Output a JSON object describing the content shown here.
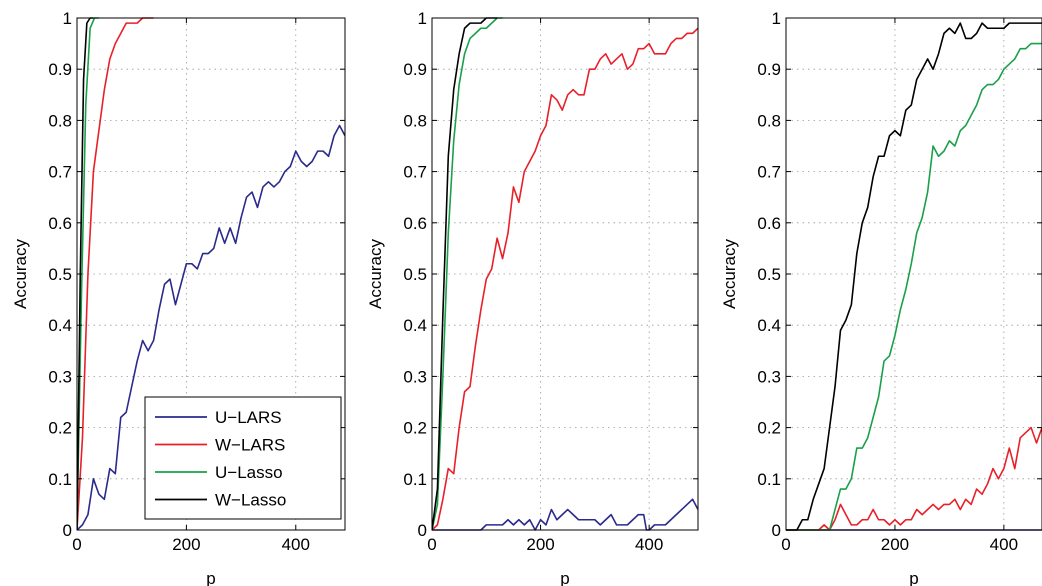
{
  "chart_data": [
    {
      "type": "line",
      "xlabel": "p",
      "ylabel": "Accuracy",
      "xlim": [
        0,
        490
      ],
      "ylim": [
        0,
        1
      ],
      "xticks": [
        0,
        200,
        400
      ],
      "yticks": [
        0,
        0.1,
        0.2,
        0.3,
        0.4,
        0.5,
        0.6,
        0.7,
        0.8,
        0.9,
        1
      ],
      "grid": true,
      "legend": "bottom-right",
      "series": [
        {
          "name": "U−LARS",
          "color": "#2a2a8c",
          "x": [
            0,
            10,
            20,
            30,
            40,
            50,
            60,
            70,
            80,
            90,
            100,
            110,
            120,
            130,
            140,
            150,
            160,
            170,
            180,
            190,
            200,
            210,
            220,
            230,
            240,
            250,
            260,
            270,
            280,
            290,
            300,
            310,
            320,
            330,
            340,
            350,
            360,
            370,
            380,
            390,
            400,
            410,
            420,
            430,
            440,
            450,
            460,
            470,
            480,
            490
          ],
          "y": [
            0,
            0.01,
            0.03,
            0.1,
            0.07,
            0.06,
            0.12,
            0.11,
            0.22,
            0.23,
            0.28,
            0.33,
            0.37,
            0.35,
            0.37,
            0.43,
            0.48,
            0.49,
            0.44,
            0.48,
            0.52,
            0.52,
            0.51,
            0.54,
            0.54,
            0.55,
            0.59,
            0.56,
            0.59,
            0.56,
            0.61,
            0.65,
            0.66,
            0.63,
            0.67,
            0.68,
            0.67,
            0.68,
            0.7,
            0.71,
            0.74,
            0.72,
            0.71,
            0.72,
            0.74,
            0.74,
            0.73,
            0.77,
            0.79,
            0.77
          ]
        },
        {
          "name": "W−LARS",
          "color": "#e8202a",
          "x": [
            0,
            10,
            20,
            30,
            40,
            50,
            60,
            70,
            80,
            90,
            100,
            110,
            120,
            130,
            140
          ],
          "y": [
            0,
            0.18,
            0.5,
            0.7,
            0.78,
            0.86,
            0.92,
            0.95,
            0.97,
            0.99,
            0.99,
            0.99,
            1,
            1,
            1
          ]
        },
        {
          "name": "U−Lasso",
          "color": "#1aa04a",
          "x": [
            0,
            8,
            16,
            24,
            32,
            40
          ],
          "y": [
            0,
            0.45,
            0.83,
            0.98,
            1,
            1
          ]
        },
        {
          "name": "W−Lasso",
          "color": "#000000",
          "x": [
            0,
            6,
            12,
            18,
            24,
            30
          ],
          "y": [
            0,
            0.5,
            0.88,
            0.99,
            1,
            1
          ]
        }
      ]
    },
    {
      "type": "line",
      "xlabel": "p",
      "ylabel": "Accuracy",
      "xlim": [
        0,
        490
      ],
      "ylim": [
        0,
        1
      ],
      "xticks": [
        0,
        200,
        400
      ],
      "yticks": [
        0,
        0.1,
        0.2,
        0.3,
        0.4,
        0.5,
        0.6,
        0.7,
        0.8,
        0.9,
        1
      ],
      "grid": true,
      "series": [
        {
          "name": "",
          "color": "#2a2a8c",
          "x": [
            0,
            90,
            100,
            110,
            120,
            130,
            140,
            150,
            160,
            170,
            180,
            190,
            200,
            210,
            220,
            230,
            240,
            250,
            260,
            270,
            280,
            290,
            300,
            310,
            320,
            330,
            340,
            350,
            360,
            370,
            380,
            390,
            395,
            400,
            410,
            420,
            430,
            440,
            450,
            460,
            470,
            480,
            490
          ],
          "y": [
            0,
            0,
            0.01,
            0.01,
            0.01,
            0.01,
            0.02,
            0.01,
            0.02,
            0.01,
            0.02,
            0,
            0.02,
            0.01,
            0.04,
            0.02,
            0.03,
            0.04,
            0.03,
            0.02,
            0.02,
            0.02,
            0.02,
            0.01,
            0.02,
            0.03,
            0.01,
            0.01,
            0.01,
            0.02,
            0.03,
            0.03,
            0,
            0,
            0.01,
            0.01,
            0.01,
            0.02,
            0.03,
            0.04,
            0.05,
            0.06,
            0.04
          ]
        },
        {
          "name": "",
          "color": "#e8202a",
          "x": [
            0,
            10,
            20,
            30,
            40,
            50,
            60,
            70,
            80,
            90,
            100,
            110,
            120,
            130,
            140,
            150,
            160,
            170,
            180,
            190,
            200,
            210,
            220,
            230,
            240,
            250,
            260,
            270,
            280,
            290,
            300,
            310,
            320,
            330,
            340,
            350,
            360,
            370,
            380,
            390,
            400,
            410,
            420,
            430,
            440,
            450,
            460,
            470,
            480,
            490
          ],
          "y": [
            0,
            0.01,
            0.06,
            0.12,
            0.11,
            0.2,
            0.27,
            0.28,
            0.36,
            0.43,
            0.49,
            0.51,
            0.57,
            0.53,
            0.58,
            0.67,
            0.64,
            0.7,
            0.72,
            0.74,
            0.77,
            0.79,
            0.85,
            0.84,
            0.82,
            0.85,
            0.86,
            0.85,
            0.85,
            0.9,
            0.9,
            0.92,
            0.93,
            0.91,
            0.92,
            0.93,
            0.9,
            0.91,
            0.94,
            0.94,
            0.95,
            0.93,
            0.93,
            0.93,
            0.95,
            0.96,
            0.96,
            0.97,
            0.97,
            0.98
          ]
        },
        {
          "name": "",
          "color": "#1aa04a",
          "x": [
            0,
            10,
            20,
            30,
            40,
            50,
            60,
            70,
            80,
            90,
            100,
            110,
            120,
            130
          ],
          "y": [
            0,
            0.05,
            0.3,
            0.58,
            0.76,
            0.87,
            0.93,
            0.96,
            0.97,
            0.98,
            0.98,
            0.99,
            1,
            1
          ]
        },
        {
          "name": "",
          "color": "#000000",
          "x": [
            0,
            10,
            20,
            30,
            40,
            50,
            60,
            70,
            80,
            90,
            100,
            110,
            120
          ],
          "y": [
            0,
            0.08,
            0.42,
            0.73,
            0.86,
            0.93,
            0.98,
            0.99,
            0.99,
            0.99,
            1,
            1,
            1
          ]
        }
      ]
    },
    {
      "type": "line",
      "xlabel": "p",
      "ylabel": "Accuracy",
      "xlim": [
        0,
        470
      ],
      "ylim": [
        0,
        1
      ],
      "xticks": [
        0,
        200,
        400
      ],
      "yticks": [
        0,
        0.1,
        0.2,
        0.3,
        0.4,
        0.5,
        0.6,
        0.7,
        0.8,
        0.9,
        1
      ],
      "grid": true,
      "series": [
        {
          "name": "",
          "color": "#2a2a8c",
          "x": [
            0,
            470
          ],
          "y": [
            0,
            0
          ]
        },
        {
          "name": "",
          "color": "#e8202a",
          "x": [
            0,
            60,
            70,
            80,
            90,
            100,
            110,
            120,
            130,
            140,
            150,
            160,
            170,
            180,
            190,
            200,
            210,
            220,
            230,
            240,
            250,
            260,
            270,
            280,
            290,
            300,
            310,
            320,
            330,
            340,
            350,
            360,
            370,
            380,
            390,
            400,
            410,
            420,
            430,
            440,
            450,
            460,
            470
          ],
          "y": [
            0,
            0,
            0.01,
            0,
            0.02,
            0.05,
            0.03,
            0.01,
            0.01,
            0.02,
            0.02,
            0.04,
            0.02,
            0.02,
            0.01,
            0.02,
            0.01,
            0.02,
            0.02,
            0.04,
            0.03,
            0.04,
            0.05,
            0.04,
            0.05,
            0.05,
            0.06,
            0.04,
            0.06,
            0.05,
            0.08,
            0.07,
            0.09,
            0.12,
            0.1,
            0.12,
            0.16,
            0.12,
            0.18,
            0.19,
            0.2,
            0.17,
            0.2
          ]
        },
        {
          "name": "",
          "color": "#1aa04a",
          "x": [
            0,
            80,
            90,
            100,
            110,
            120,
            130,
            140,
            150,
            160,
            170,
            180,
            190,
            200,
            210,
            220,
            230,
            240,
            250,
            260,
            270,
            280,
            290,
            300,
            310,
            320,
            330,
            340,
            350,
            360,
            370,
            380,
            390,
            400,
            410,
            420,
            430,
            440,
            450,
            460,
            470
          ],
          "y": [
            0,
            0,
            0.04,
            0.08,
            0.08,
            0.1,
            0.16,
            0.16,
            0.18,
            0.22,
            0.26,
            0.33,
            0.34,
            0.38,
            0.43,
            0.47,
            0.52,
            0.58,
            0.61,
            0.66,
            0.75,
            0.73,
            0.74,
            0.76,
            0.75,
            0.78,
            0.79,
            0.81,
            0.83,
            0.86,
            0.87,
            0.87,
            0.88,
            0.9,
            0.91,
            0.92,
            0.94,
            0.94,
            0.95,
            0.95,
            0.95
          ]
        },
        {
          "name": "",
          "color": "#000000",
          "x": [
            0,
            20,
            30,
            40,
            50,
            60,
            70,
            80,
            90,
            100,
            110,
            120,
            130,
            140,
            150,
            160,
            170,
            180,
            190,
            200,
            210,
            220,
            230,
            240,
            250,
            260,
            270,
            280,
            290,
            300,
            310,
            320,
            330,
            340,
            350,
            360,
            370,
            380,
            390,
            400,
            410,
            420,
            430,
            440,
            450,
            460,
            470
          ],
          "y": [
            0,
            0,
            0.02,
            0.02,
            0.06,
            0.09,
            0.12,
            0.2,
            0.28,
            0.39,
            0.41,
            0.44,
            0.54,
            0.6,
            0.63,
            0.69,
            0.73,
            0.73,
            0.77,
            0.78,
            0.77,
            0.82,
            0.83,
            0.88,
            0.9,
            0.92,
            0.9,
            0.93,
            0.97,
            0.98,
            0.97,
            0.99,
            0.96,
            0.96,
            0.97,
            0.99,
            0.98,
            0.98,
            0.98,
            0.98,
            0.99,
            0.99,
            0.99,
            0.99,
            0.99,
            0.99,
            0.99
          ]
        }
      ]
    }
  ],
  "legend": {
    "items": [
      {
        "label": "U−LARS",
        "color": "#2a2a8c"
      },
      {
        "label": "W−LARS",
        "color": "#e8202a"
      },
      {
        "label": "U−Lasso",
        "color": "#1aa04a"
      },
      {
        "label": "W−Lasso",
        "color": "#000000"
      }
    ]
  }
}
